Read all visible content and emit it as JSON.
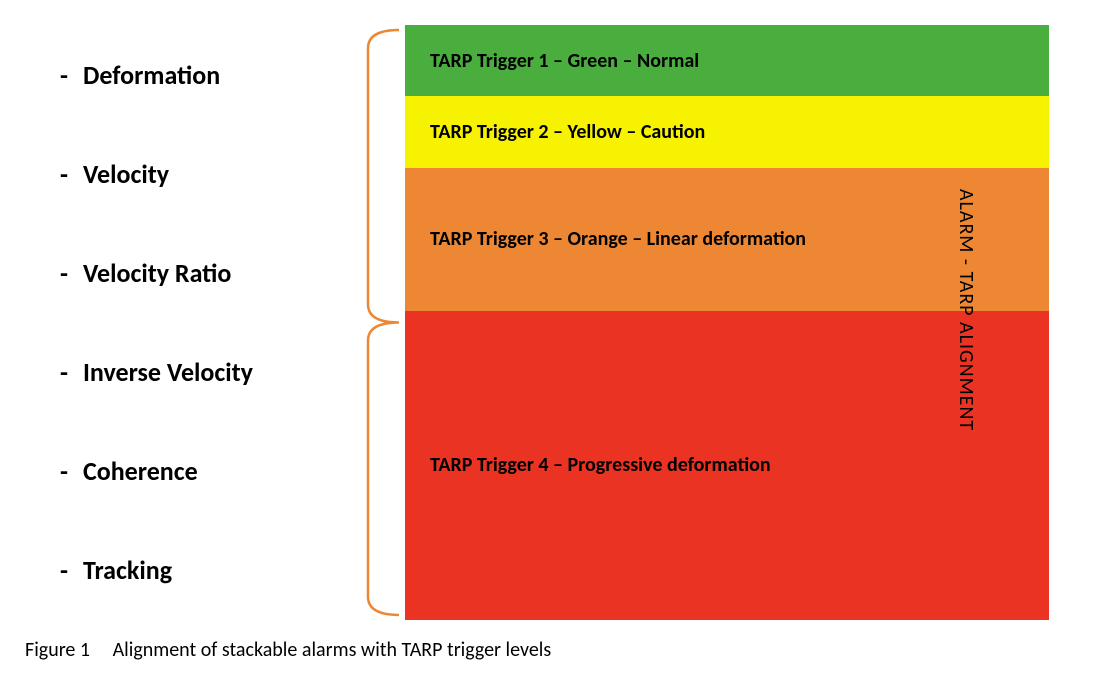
{
  "alarms": [
    "Deformation",
    "Velocity",
    "Velocity Ratio",
    "Inverse Velocity",
    "Coherence",
    "Tracking"
  ],
  "triggers": [
    {
      "label": "TARP Trigger 1 – Green  – Normal",
      "color": "#4AAE3F",
      "heightPct": 12
    },
    {
      "label": "TARP Trigger 2 – Yellow – Caution",
      "color": "#F6F200",
      "heightPct": 12
    },
    {
      "label": "TARP Trigger 3 – Orange – Linear deformation",
      "color": "#ED8733",
      "heightPct": 24
    },
    {
      "label": "TARP Trigger 4 – Progressive deformation",
      "color": "#EB3323",
      "heightPct": 52
    }
  ],
  "braceColor": "#ED8733",
  "sideLabel": "ALARM - TARP ALIGNMENT",
  "caption": {
    "num": "Figure 1",
    "text": "Alignment of stackable alarms with TARP trigger levels"
  },
  "textColor": "#000000",
  "background": "#ffffff"
}
